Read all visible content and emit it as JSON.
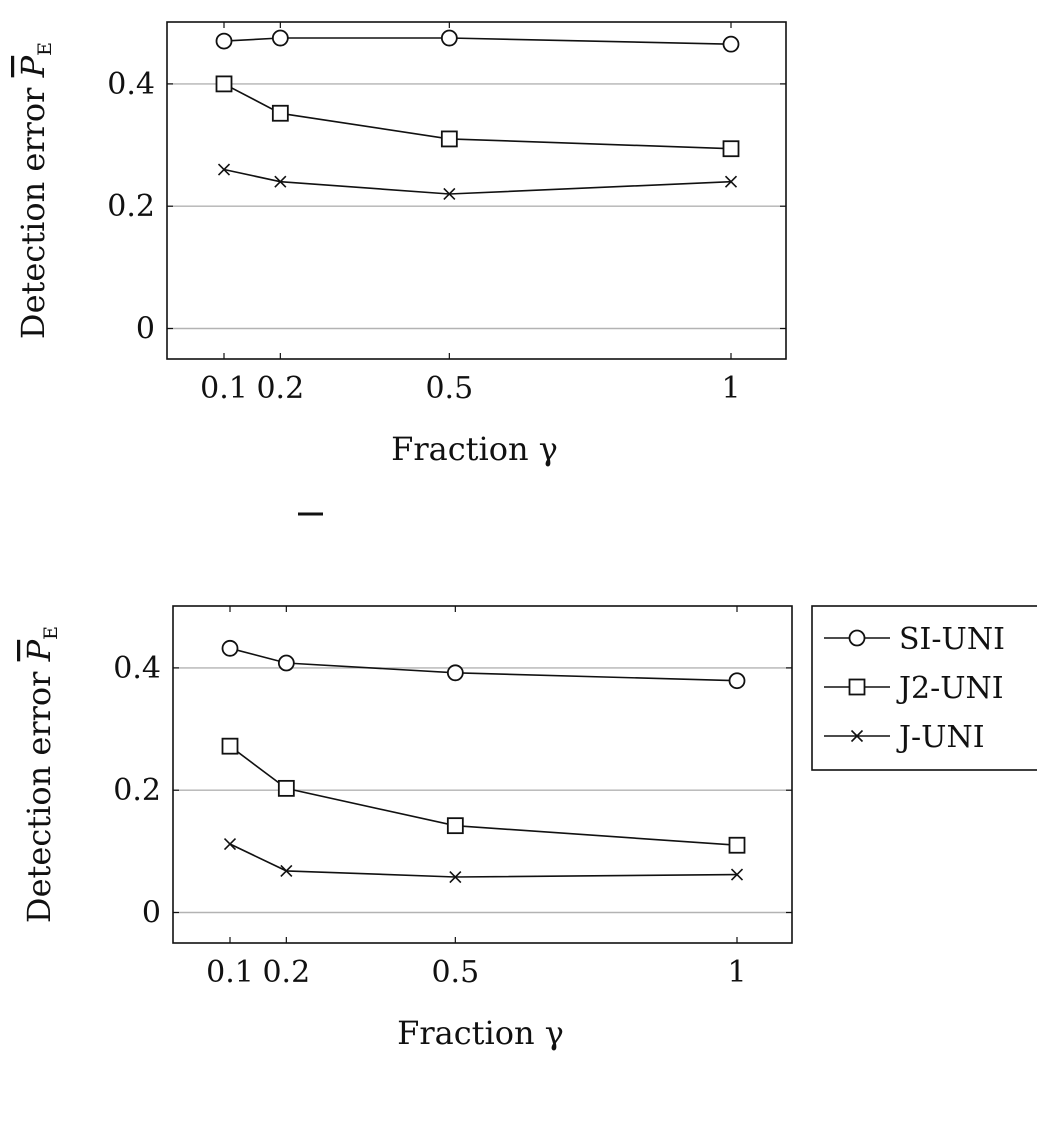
{
  "chart_data": [
    {
      "type": "line",
      "title": "",
      "xlabel": "Fraction γ",
      "ylabel": "Detection error P̄E",
      "ylabel_main": "Detection error ",
      "ylabel_symbol": "P",
      "ylabel_subscript": "E",
      "x": [
        0.1,
        0.2,
        0.5,
        1
      ],
      "x_ticks": [
        "0.1",
        "0.2",
        "0.5",
        "1"
      ],
      "y_ticks": [
        "0",
        "0.2",
        "0.4"
      ],
      "ylim": [
        -0.05,
        0.5
      ],
      "xlim": [
        0,
        1.1
      ],
      "grid": "horizontal",
      "series": [
        {
          "name": "SI-UNI",
          "marker": "circle",
          "values": [
            0.47,
            0.475,
            0.475,
            0.465
          ]
        },
        {
          "name": "J2-UNI",
          "marker": "square",
          "values": [
            0.4,
            0.352,
            0.31,
            0.294
          ]
        },
        {
          "name": "J-UNI",
          "marker": "cross",
          "values": [
            0.26,
            0.24,
            0.22,
            0.24
          ]
        }
      ]
    },
    {
      "type": "line",
      "title": "",
      "xlabel": "Fraction γ",
      "ylabel": "Detection error P̄E",
      "ylabel_main": "Detection error ",
      "ylabel_symbol": "P",
      "ylabel_subscript": "E",
      "x": [
        0.1,
        0.2,
        0.5,
        1
      ],
      "x_ticks": [
        "0.1",
        "0.2",
        "0.5",
        "1"
      ],
      "y_ticks": [
        "0",
        "0.2",
        "0.4"
      ],
      "ylim": [
        -0.05,
        0.5
      ],
      "xlim": [
        0,
        1.1
      ],
      "grid": "horizontal",
      "legend_position": "outside-right",
      "series": [
        {
          "name": "SI-UNI",
          "marker": "circle",
          "values": [
            0.432,
            0.408,
            0.392,
            0.379
          ]
        },
        {
          "name": "J2-UNI",
          "marker": "square",
          "values": [
            0.272,
            0.203,
            0.142,
            0.11
          ]
        },
        {
          "name": "J-UNI",
          "marker": "cross",
          "values": [
            0.112,
            0.068,
            0.058,
            0.062
          ]
        }
      ]
    }
  ],
  "legend": {
    "entries": [
      "SI-UNI",
      "J2-UNI",
      "J-UNI"
    ],
    "markers": [
      "circle",
      "square",
      "cross"
    ]
  },
  "colors": {
    "ink": "#111111",
    "grid": "#b3b3b3",
    "background": "#ffffff"
  }
}
